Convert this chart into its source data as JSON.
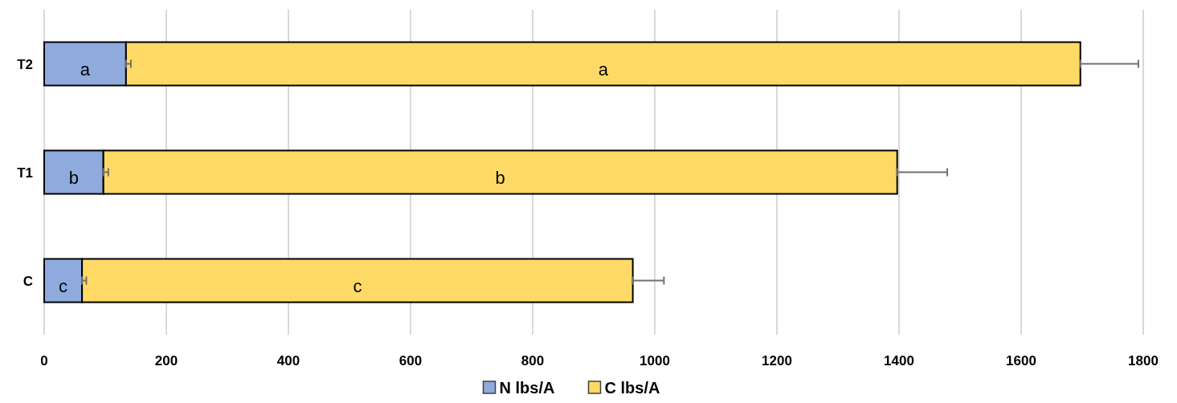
{
  "chart_data": {
    "type": "bar",
    "orientation": "horizontal",
    "stacked": true,
    "categories": [
      "T2",
      "T1",
      "C"
    ],
    "series": [
      {
        "name": "N lbs/A",
        "color": "#8faadc",
        "values": [
          134,
          97,
          62
        ],
        "errors": [
          [
            134,
            142
          ],
          [
            97,
            105
          ],
          [
            62,
            69
          ]
        ],
        "value_labels": [
          "a",
          "b",
          "c"
        ]
      },
      {
        "name": "C lbs/A",
        "color": "#ffd966",
        "values": [
          1563,
          1300,
          902
        ],
        "errors": [
          [
            1697,
            1792
          ],
          [
            1397,
            1479
          ],
          [
            964,
            1015
          ]
        ],
        "value_labels": [
          "a",
          "b",
          "c"
        ]
      }
    ],
    "xlim": [
      0,
      1800
    ],
    "xticks": [
      0,
      200,
      400,
      600,
      800,
      1000,
      1200,
      1400,
      1600,
      1800
    ],
    "grid": "x",
    "legend": "bottom"
  }
}
